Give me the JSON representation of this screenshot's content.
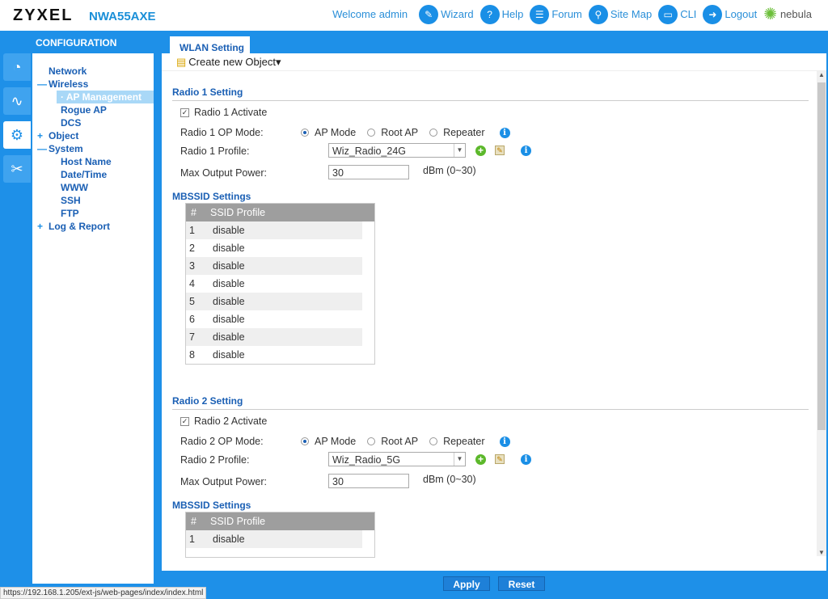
{
  "header": {
    "brand": "ZYXEL",
    "model": "NWA55AXE",
    "welcome": "Welcome admin",
    "links": [
      {
        "label": "Wizard",
        "icon": "wand-icon"
      },
      {
        "label": "Help",
        "icon": "help-icon"
      },
      {
        "label": "Forum",
        "icon": "forum-icon"
      },
      {
        "label": "Site Map",
        "icon": "sitemap-icon"
      },
      {
        "label": "CLI",
        "icon": "cli-icon"
      },
      {
        "label": "Logout",
        "icon": "logout-icon"
      }
    ],
    "nebula": "nebula"
  },
  "sidebar": {
    "title": "CONFIGURATION",
    "items": [
      {
        "label": "Network"
      },
      {
        "label": "Wireless"
      },
      {
        "label": "AP Management"
      },
      {
        "label": "Rogue AP"
      },
      {
        "label": "DCS"
      },
      {
        "label": "Object"
      },
      {
        "label": "System"
      },
      {
        "label": "Host Name"
      },
      {
        "label": "Date/Time"
      },
      {
        "label": "WWW"
      },
      {
        "label": "SSH"
      },
      {
        "label": "FTP"
      },
      {
        "label": "Log & Report"
      }
    ]
  },
  "tab": "WLAN Setting",
  "toolbar": {
    "create": "Create new Object"
  },
  "radio1": {
    "section": "Radio 1 Setting",
    "activate": "Radio 1 Activate",
    "op_label": "Radio 1 OP Mode:",
    "modes": [
      "AP Mode",
      "Root AP",
      "Repeater"
    ],
    "profile_label": "Radio 1 Profile:",
    "profile": "Wiz_Radio_24G",
    "power_label": "Max Output Power:",
    "power": "30",
    "power_unit": "dBm (0~30)",
    "mbssid": "MBSSID Settings"
  },
  "radio2": {
    "section": "Radio 2 Setting",
    "activate": "Radio 2 Activate",
    "op_label": "Radio 2 OP Mode:",
    "modes": [
      "AP Mode",
      "Root AP",
      "Repeater"
    ],
    "profile_label": "Radio 2 Profile:",
    "profile": "Wiz_Radio_5G",
    "power_label": "Max Output Power:",
    "power": "30",
    "power_unit": "dBm (0~30)",
    "mbssid": "MBSSID Settings"
  },
  "table": {
    "headers": [
      "#",
      "SSID Profile"
    ],
    "rows1": [
      [
        "1",
        "disable"
      ],
      [
        "2",
        "disable"
      ],
      [
        "3",
        "disable"
      ],
      [
        "4",
        "disable"
      ],
      [
        "5",
        "disable"
      ],
      [
        "6",
        "disable"
      ],
      [
        "7",
        "disable"
      ],
      [
        "8",
        "disable"
      ]
    ],
    "rows2": [
      [
        "1",
        "disable"
      ]
    ]
  },
  "buttons": {
    "apply": "Apply",
    "reset": "Reset"
  },
  "status_url": "https://192.168.1.205/ext-js/web-pages/index/index.html"
}
